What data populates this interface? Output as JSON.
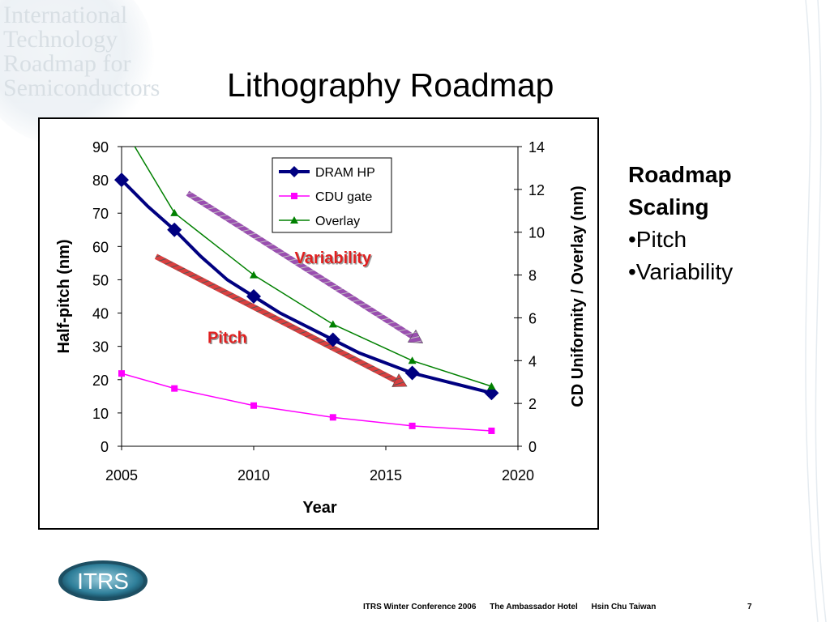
{
  "slide": {
    "title": "Lithography Roadmap",
    "watermark_lines": [
      "International",
      "Technology",
      "Roadmap for",
      "Semiconductors"
    ],
    "side_heading": [
      "Roadmap",
      "Scaling"
    ],
    "side_bullets": [
      "•Pitch",
      "•Variability"
    ],
    "logo_text": "ITRS",
    "footer": [
      "ITRS Winter Conference 2006",
      "The Ambassador Hotel",
      "Hsin Chu  Taiwan"
    ],
    "page_number": "7",
    "colors": {
      "dram": "#000080",
      "cdu": "#ff00ff",
      "overlay": "#008000",
      "pitch_arrow": "#d94040",
      "variability_arrow": "#9a4fb0",
      "annotation_text": "#e02020"
    }
  },
  "chart_data": {
    "type": "line",
    "xlabel": "Year",
    "ylabel": "Half-pitch (nm)",
    "y2label": "CD Uniformity / Overlay (nm)",
    "xlim": [
      2005,
      2020
    ],
    "ylim": [
      0,
      90
    ],
    "y2lim": [
      0,
      14
    ],
    "xticks": [
      "2005",
      "2010",
      "2015",
      "2020"
    ],
    "yticks": [
      "0",
      "10",
      "20",
      "30",
      "40",
      "50",
      "60",
      "70",
      "80",
      "90"
    ],
    "y2ticks": [
      "0",
      "2",
      "4",
      "6",
      "8",
      "10",
      "12",
      "14"
    ],
    "grid": false,
    "legend_position": "top-center",
    "series": [
      {
        "name": "DRAM HP",
        "axis": "left",
        "marker": "diamond",
        "color": "#000080",
        "markers": [
          {
            "x": 2005,
            "y": 80
          },
          {
            "x": 2007,
            "y": 65
          },
          {
            "x": 2010,
            "y": 45
          },
          {
            "x": 2013,
            "y": 32
          },
          {
            "x": 2016,
            "y": 22
          },
          {
            "x": 2019,
            "y": 16
          }
        ],
        "line": [
          {
            "x": 2005,
            "y": 80
          },
          {
            "x": 2006,
            "y": 72
          },
          {
            "x": 2007,
            "y": 65
          },
          {
            "x": 2008,
            "y": 57
          },
          {
            "x": 2009,
            "y": 50
          },
          {
            "x": 2010,
            "y": 45
          },
          {
            "x": 2011,
            "y": 40
          },
          {
            "x": 2012,
            "y": 36
          },
          {
            "x": 2013,
            "y": 32
          },
          {
            "x": 2014,
            "y": 28
          },
          {
            "x": 2015,
            "y": 25
          },
          {
            "x": 2016,
            "y": 22
          },
          {
            "x": 2017,
            "y": 20
          },
          {
            "x": 2018,
            "y": 18
          },
          {
            "x": 2019,
            "y": 16
          }
        ]
      },
      {
        "name": "CDU gate",
        "axis": "right",
        "marker": "square",
        "color": "#ff00ff",
        "markers": [
          {
            "x": 2005,
            "y": 3.4
          },
          {
            "x": 2007,
            "y": 2.7
          },
          {
            "x": 2010,
            "y": 1.9
          },
          {
            "x": 2013,
            "y": 1.35
          },
          {
            "x": 2016,
            "y": 0.95
          },
          {
            "x": 2019,
            "y": 0.72
          }
        ],
        "line": [
          {
            "x": 2005,
            "y": 3.4
          },
          {
            "x": 2007,
            "y": 2.7
          },
          {
            "x": 2010,
            "y": 1.9
          },
          {
            "x": 2013,
            "y": 1.35
          },
          {
            "x": 2016,
            "y": 0.95
          },
          {
            "x": 2019,
            "y": 0.72
          }
        ]
      },
      {
        "name": "Overlay",
        "axis": "right",
        "marker": "triangle",
        "color": "#008000",
        "markers": [
          {
            "x": 2007,
            "y": 10.9
          },
          {
            "x": 2010,
            "y": 8.0
          },
          {
            "x": 2013,
            "y": 5.7
          },
          {
            "x": 2016,
            "y": 4.0
          },
          {
            "x": 2019,
            "y": 2.8
          }
        ],
        "line": [
          {
            "x": 2005.4,
            "y": 14.2
          },
          {
            "x": 2007,
            "y": 10.9
          },
          {
            "x": 2010,
            "y": 8.0
          },
          {
            "x": 2013,
            "y": 5.7
          },
          {
            "x": 2016,
            "y": 4.0
          },
          {
            "x": 2019,
            "y": 2.8
          }
        ]
      }
    ],
    "annotations": [
      {
        "label": "Pitch",
        "from": {
          "x": 2006.3,
          "y": 57
        },
        "to": {
          "x": 2015.8,
          "y": 18
        },
        "color": "#d94040",
        "text_at": {
          "x": 2009.0,
          "y": 31
        }
      },
      {
        "label": "Variability",
        "from": {
          "x": 2007.5,
          "y": 76
        },
        "to": {
          "x": 2016.4,
          "y": 31
        },
        "color": "#9a4fb0",
        "text_at": {
          "x": 2013.0,
          "y": 55
        }
      }
    ]
  }
}
